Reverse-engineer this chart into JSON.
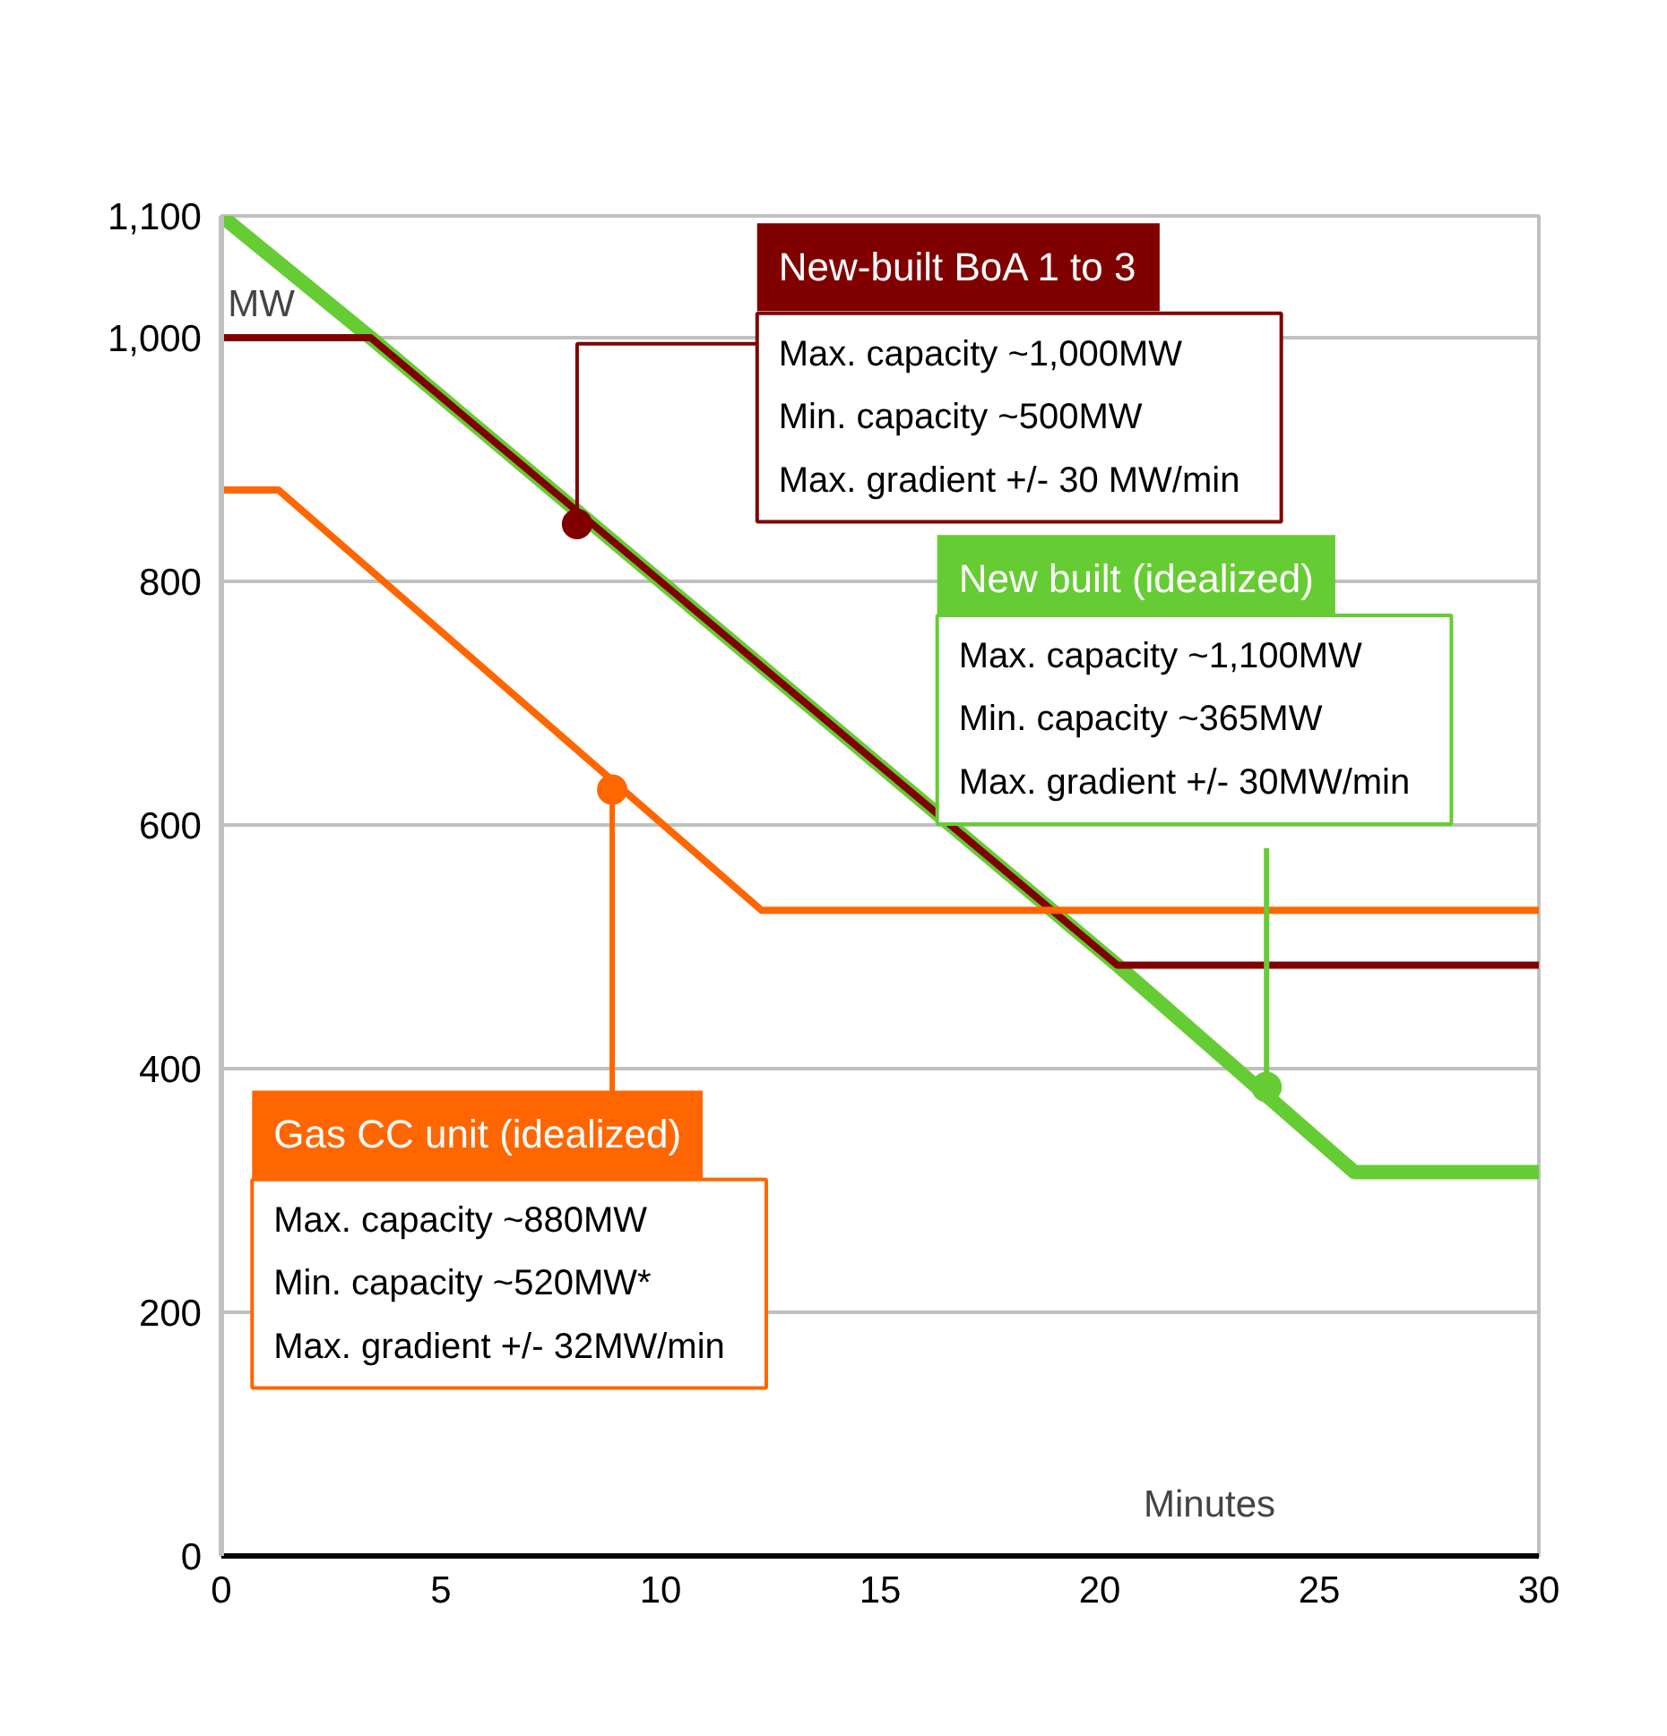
{
  "chart_data": {
    "type": "line",
    "xlabel": "Minutes",
    "ylabel": "MW",
    "xlim": [
      0,
      30
    ],
    "xticks": [
      0,
      5,
      10,
      15,
      20,
      25,
      30
    ],
    "ylim": [
      0,
      1100
    ],
    "yticks": [
      0,
      200,
      400,
      600,
      800,
      {
        "value": 1000,
        "label": "1,000"
      },
      {
        "value": 1100,
        "label": "1,100"
      }
    ],
    "grid": "y",
    "legend": false,
    "line_style": "solid",
    "series": [
      {
        "name": "New built (idealized)",
        "color": "#66cc33",
        "x": [
          0,
          3.4,
          20.4,
          25.8,
          30
        ],
        "values": [
          1100,
          1000,
          485,
          315,
          315
        ]
      },
      {
        "name": "New-built BoA 1 to 3",
        "color": "#800000",
        "x": [
          0,
          3.4,
          20.4,
          30
        ],
        "values": [
          1000,
          1000,
          485,
          485
        ]
      },
      {
        "name": "Gas CC unit (idealized)",
        "color": "#ff6600",
        "x": [
          0,
          1.3,
          12.3,
          30
        ],
        "values": [
          875,
          875,
          530,
          530
        ]
      }
    ],
    "annotations": [
      {
        "text": "Max. capacity   ~1,100MW\nMin.  capacity   ~365MW\nMax. gradient   +/- 30MW/min",
        "x": 23.8,
        "y": 385
      },
      {
        "text": "Max. capacity   ~1,000MW\nMin.  capacity   ~500MW\nMax. gradient   +/- 30 MW/min",
        "x": 8.1,
        "y": 847
      },
      {
        "text": "Max. capacity   ~880MW\nMin.  capacity   ~520MW*\nMax. gradient   +/- 32MW/min",
        "x": 8.9,
        "y": 629
      }
    ]
  }
}
